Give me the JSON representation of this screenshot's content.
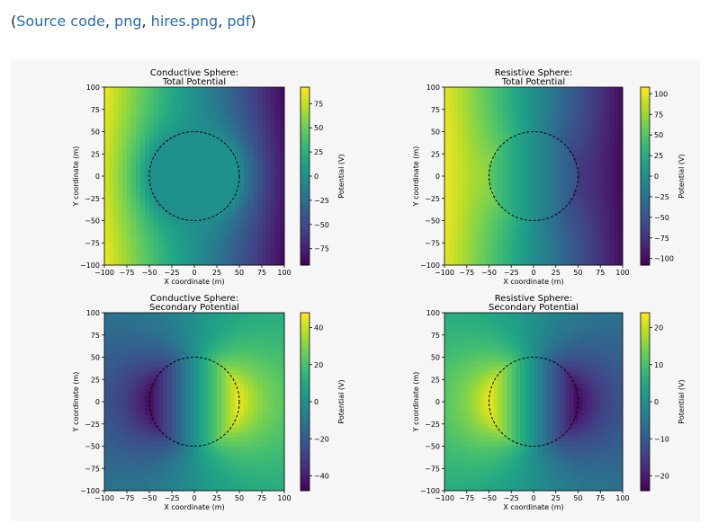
{
  "links": {
    "open": "(",
    "sep": ", ",
    "close": ")",
    "items": [
      {
        "label": "Source code"
      },
      {
        "label": "png"
      },
      {
        "label": "hires.png"
      },
      {
        "label": "pdf"
      }
    ]
  },
  "chart_data": [
    {
      "type": "heatmap",
      "title_line1": "Conductive Sphere:",
      "title_line2": "Total Potential",
      "xlabel": "X coordinate (m)",
      "ylabel": "Y coordinate (m)",
      "xlim": [
        -100,
        100
      ],
      "ylim": [
        -100,
        100
      ],
      "x_ticks": [
        "−100",
        "−75",
        "−50",
        "−25",
        "0",
        "25",
        "50",
        "75",
        "100"
      ],
      "y_ticks": [
        "100",
        "75",
        "50",
        "25",
        "0",
        "−25",
        "−50",
        "−75",
        "−100"
      ],
      "colorbar_label": "Potential (V)",
      "colorbar_range": [
        -92,
        92
      ],
      "colorbar_ticks": [
        75,
        50,
        25,
        0,
        -25,
        -50,
        -75
      ],
      "colorbar_tick_labels": [
        "75",
        "50",
        "25",
        "0",
        "−25",
        "−50",
        "−75"
      ],
      "colormap": "viridis",
      "field": "conductive_total",
      "sphere_radius": 50
    },
    {
      "type": "heatmap",
      "title_line1": "Resistive Sphere:",
      "title_line2": "Total Potential",
      "xlabel": "X coordinate (m)",
      "ylabel": "Y coordinate (m)",
      "xlim": [
        -100,
        100
      ],
      "ylim": [
        -100,
        100
      ],
      "x_ticks": [
        "−100",
        "−75",
        "−50",
        "−25",
        "0",
        "25",
        "50",
        "75",
        "100"
      ],
      "y_ticks": [
        "100",
        "75",
        "50",
        "25",
        "0",
        "−25",
        "−50",
        "−75",
        "−100"
      ],
      "colorbar_label": "Potential (V)",
      "colorbar_range": [
        -108,
        108
      ],
      "colorbar_ticks": [
        100,
        75,
        50,
        25,
        0,
        -25,
        -50,
        -75,
        -100
      ],
      "colorbar_tick_labels": [
        "100",
        "75",
        "50",
        "25",
        "0",
        "−25",
        "−50",
        "−75",
        "−100"
      ],
      "colormap": "viridis",
      "field": "resistive_total",
      "sphere_radius": 50
    },
    {
      "type": "heatmap",
      "title_line1": "Conductive Sphere:",
      "title_line2": "Secondary Potential",
      "xlabel": "X coordinate (m)",
      "ylabel": "Y coordinate (m)",
      "xlim": [
        -100,
        100
      ],
      "ylim": [
        -100,
        100
      ],
      "x_ticks": [
        "−100",
        "−75",
        "−50",
        "−25",
        "0",
        "25",
        "50",
        "75",
        "100"
      ],
      "y_ticks": [
        "100",
        "75",
        "50",
        "25",
        "0",
        "−25",
        "−50",
        "−75",
        "−100"
      ],
      "colorbar_label": "Potential (V)",
      "colorbar_range": [
        -48,
        48
      ],
      "colorbar_ticks": [
        40,
        20,
        0,
        -20,
        -40
      ],
      "colorbar_tick_labels": [
        "40",
        "20",
        "0",
        "−20",
        "−40"
      ],
      "colormap": "viridis",
      "field": "conductive_secondary",
      "sphere_radius": 50
    },
    {
      "type": "heatmap",
      "title_line1": "Resistive Sphere:",
      "title_line2": "Secondary Potential",
      "xlabel": "X coordinate (m)",
      "ylabel": "Y coordinate (m)",
      "xlim": [
        -100,
        100
      ],
      "ylim": [
        -100,
        100
      ],
      "x_ticks": [
        "−100",
        "−75",
        "−50",
        "−25",
        "0",
        "25",
        "50",
        "75",
        "100"
      ],
      "y_ticks": [
        "100",
        "75",
        "50",
        "25",
        "0",
        "−25",
        "−50",
        "−75",
        "−100"
      ],
      "colorbar_label": "Potential (V)",
      "colorbar_range": [
        -24,
        24
      ],
      "colorbar_ticks": [
        20,
        10,
        0,
        -10,
        -20
      ],
      "colorbar_tick_labels": [
        "20",
        "10",
        "0",
        "−10",
        "−20"
      ],
      "colormap": "viridis",
      "field": "resistive_secondary",
      "sphere_radius": 50
    }
  ]
}
